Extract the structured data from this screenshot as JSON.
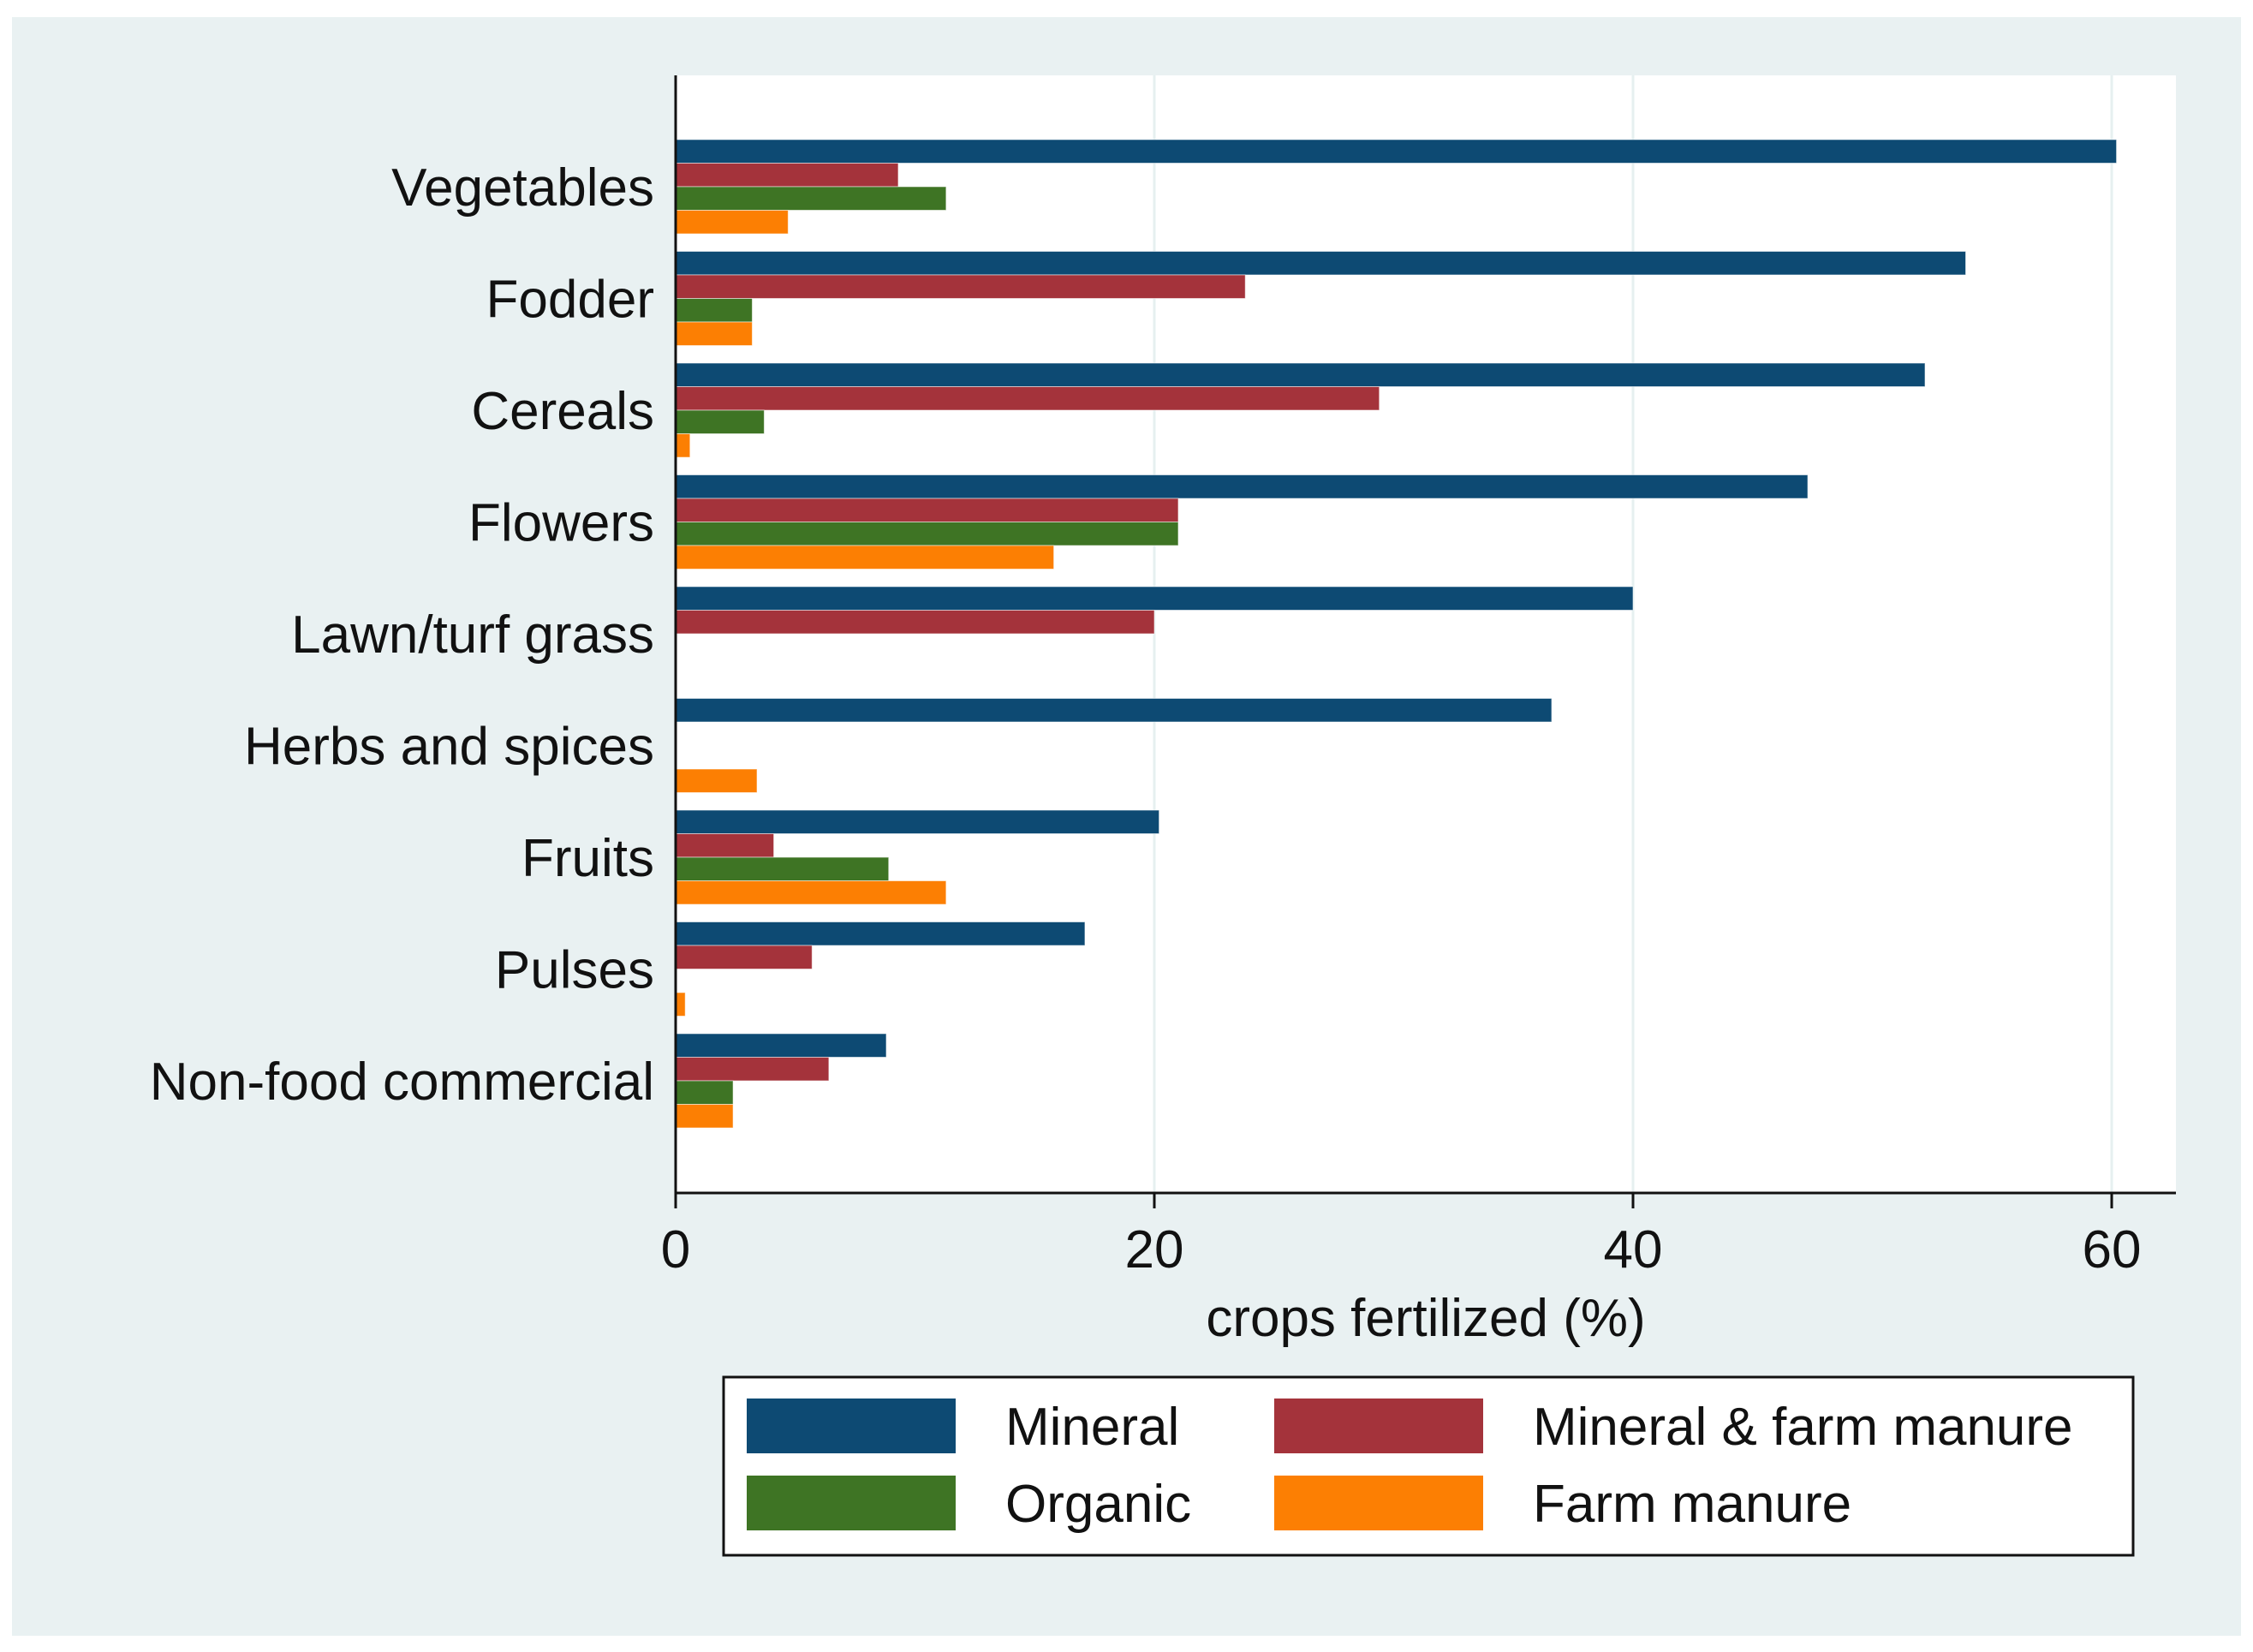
{
  "chart_data": {
    "type": "bar",
    "orientation": "horizontal",
    "title": "",
    "xlabel": "crops fertilized (%)",
    "ylabel": "",
    "xlim": [
      0,
      62.5
    ],
    "xticks": [
      0,
      20,
      40,
      60
    ],
    "grid": true,
    "legend_position": "bottom",
    "categories": [
      "Vegetables",
      "Fodder",
      "Cereals",
      "Flowers",
      "Lawn/turf grass",
      "Herbs and spices",
      "Fruits",
      "Pulses",
      "Non-food commercial"
    ],
    "series": [
      {
        "name": "Mineral",
        "color": "#0d4a73",
        "values": [
          60.2,
          53.9,
          52.2,
          47.3,
          40.0,
          36.6,
          20.2,
          17.1,
          8.8
        ]
      },
      {
        "name": "Mineral & farm manure",
        "color": "#a4333b",
        "values": [
          9.3,
          23.8,
          29.4,
          21.0,
          20.0,
          0,
          4.1,
          5.7,
          6.4
        ]
      },
      {
        "name": "Organic",
        "color": "#3e7424",
        "values": [
          11.3,
          3.2,
          3.7,
          21.0,
          0,
          0,
          8.9,
          0,
          2.4
        ]
      },
      {
        "name": "Farm manure",
        "color": "#fc7f03",
        "values": [
          4.7,
          3.2,
          0.6,
          15.8,
          0,
          3.4,
          11.3,
          0.4,
          2.4
        ]
      }
    ]
  }
}
